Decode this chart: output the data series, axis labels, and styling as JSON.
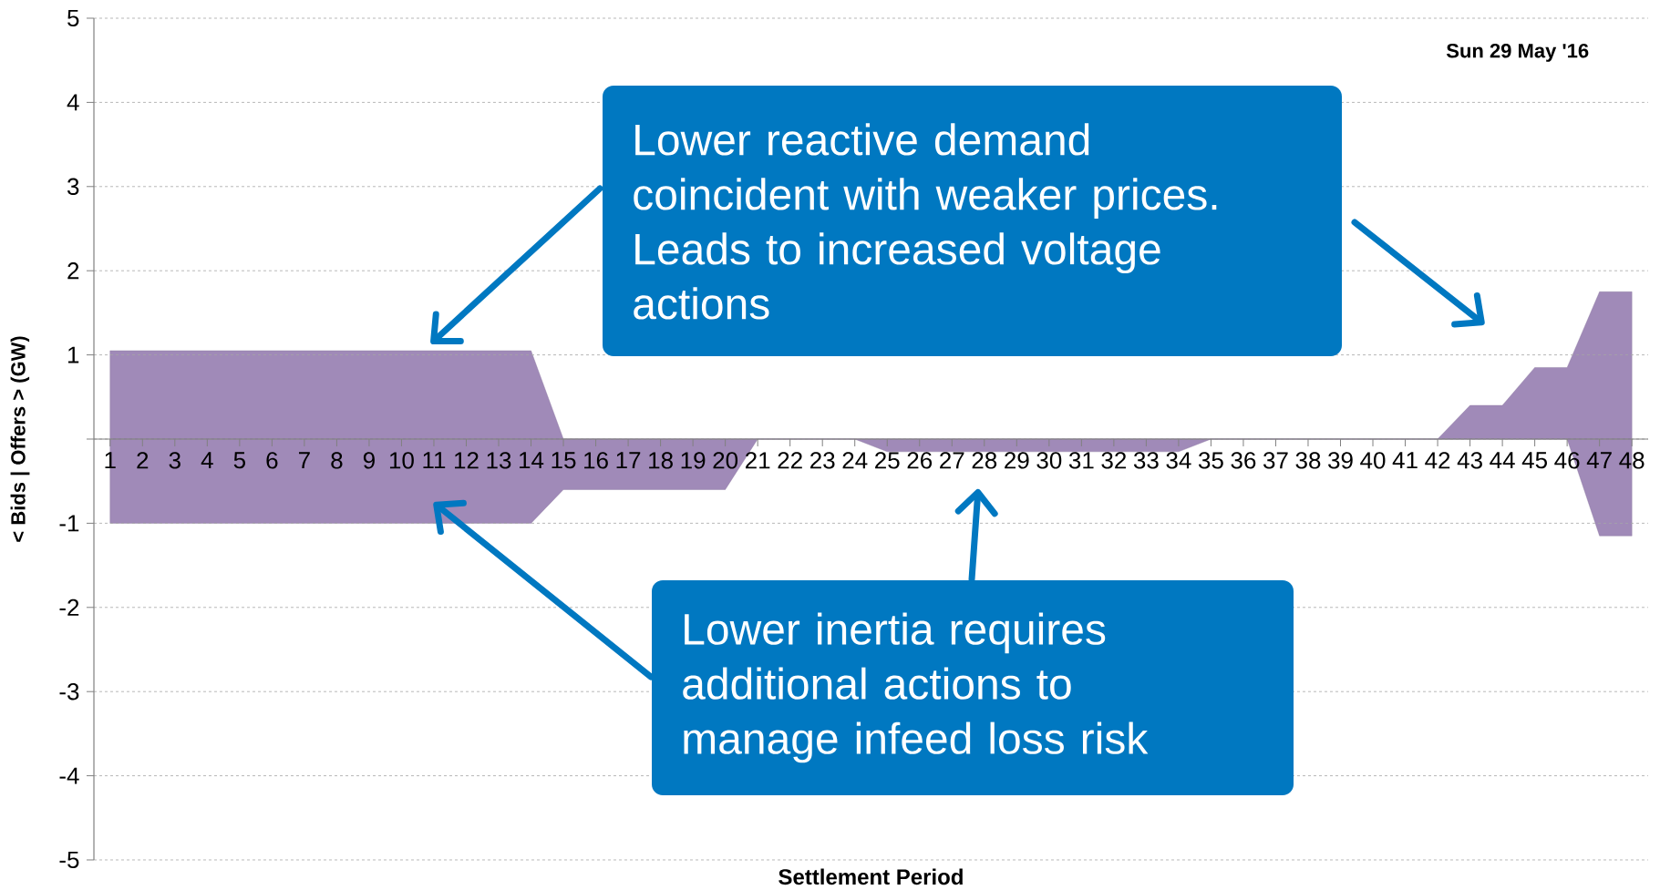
{
  "chart_data": {
    "type": "area",
    "title": "Sun 29 May '16",
    "xlabel": "Settlement Period",
    "ylabel": "< Bids | Offers > (GW)",
    "categories": [
      "1",
      "2",
      "3",
      "4",
      "5",
      "6",
      "7",
      "8",
      "9",
      "10",
      "11",
      "12",
      "13",
      "14",
      "15",
      "16",
      "17",
      "18",
      "19",
      "20",
      "21",
      "22",
      "23",
      "24",
      "25",
      "26",
      "27",
      "28",
      "29",
      "30",
      "31",
      "32",
      "33",
      "34",
      "35",
      "36",
      "37",
      "38",
      "39",
      "40",
      "41",
      "42",
      "43",
      "44",
      "45",
      "46",
      "47",
      "48"
    ],
    "series": [
      {
        "color": "#a08ab8",
        "values": [
          1.05,
          1.05,
          1.05,
          1.05,
          1.05,
          1.05,
          1.05,
          1.05,
          1.05,
          1.05,
          1.05,
          1.05,
          1.05,
          1.05,
          0,
          0,
          0,
          0,
          0,
          0,
          0,
          0,
          0,
          0,
          0,
          0,
          0,
          0,
          0,
          0,
          0,
          0,
          0,
          0,
          0,
          0,
          0,
          0,
          0,
          0,
          0,
          0,
          0.4,
          0.4,
          0.85,
          0.85,
          1.75,
          1.75
        ]
      },
      {
        "color": "#a08ab8",
        "values": [
          -1,
          -1,
          -1,
          -1,
          -1,
          -1,
          -1,
          -1,
          -1,
          -1,
          -1,
          -1,
          -1,
          -1,
          -0.6,
          -0.6,
          -0.6,
          -0.6,
          -0.6,
          -0.6,
          0,
          0,
          0,
          0,
          -0.15,
          -0.15,
          -0.15,
          -0.15,
          -0.15,
          -0.15,
          -0.15,
          -0.15,
          -0.15,
          -0.15,
          0,
          0,
          0,
          0,
          0,
          0,
          0,
          0,
          0,
          0,
          0,
          0,
          -1.15,
          -1.15
        ]
      }
    ],
    "ylim": [
      -5,
      5
    ],
    "yticks": [
      -5,
      -4,
      -3,
      -2,
      -1,
      {
        "value": 0,
        "label": null
      },
      1,
      2,
      3,
      4,
      5
    ],
    "grid": "y",
    "annotations": [
      "Lower reactive demand coincident with weaker prices. Leads to increased voltage actions",
      "Lower inertia requires additional actions to manage infeed loss risk"
    ]
  }
}
